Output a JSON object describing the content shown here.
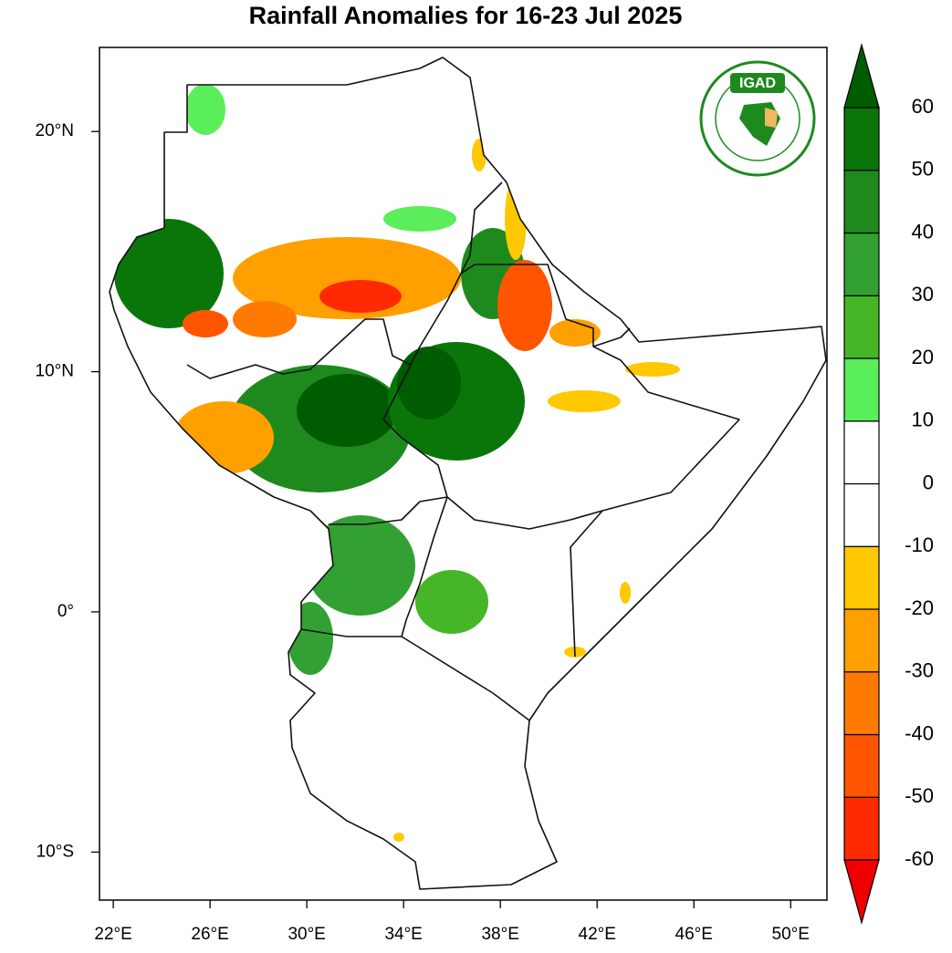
{
  "title": "Rainfall Anomalies for 16-23 Jul 2025",
  "logo": "IGAD",
  "map": {
    "xlim": [
      21.43,
      51.5
    ],
    "ylim": [
      -12,
      23.5
    ],
    "xticks": [
      {
        "value": 22,
        "label": "22°E"
      },
      {
        "value": 26,
        "label": "26°E"
      },
      {
        "value": 30,
        "label": "30°E"
      },
      {
        "value": 34,
        "label": "34°E"
      },
      {
        "value": 38,
        "label": "38°E"
      },
      {
        "value": 42,
        "label": "42°E"
      },
      {
        "value": 46,
        "label": "46°E"
      },
      {
        "value": 50,
        "label": "50°E"
      }
    ],
    "yticks": [
      {
        "value": 20,
        "label": "20°N"
      },
      {
        "value": 10,
        "label": "10°N"
      },
      {
        "value": 0,
        "label": "0°"
      },
      {
        "value": -10,
        "label": "10°S"
      }
    ]
  },
  "colorbar": {
    "levels": [
      -60,
      -50,
      -40,
      -30,
      -20,
      -10,
      0,
      10,
      20,
      30,
      40,
      50,
      60
    ],
    "colors": [
      "#ee0000",
      "#ff2a00",
      "#ff5500",
      "#ff7a00",
      "#ffa000",
      "#ffc800",
      "#ffffff",
      "#ffffff",
      "#5aee5a",
      "#46b628",
      "#32a032",
      "#1e8a1e",
      "#0a760a",
      "#005c00"
    ]
  }
}
